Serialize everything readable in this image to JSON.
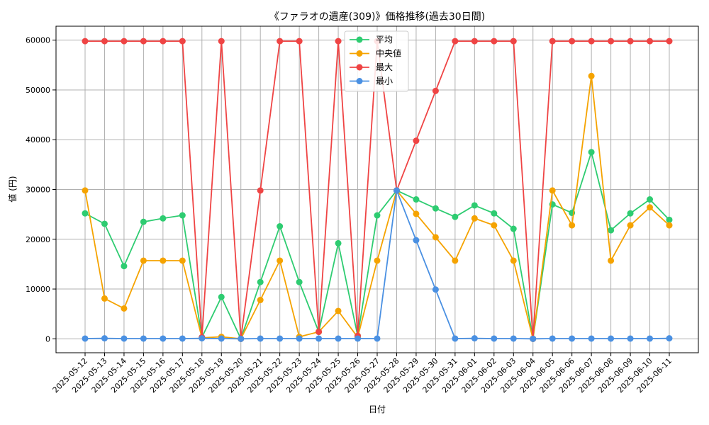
{
  "chart_data": {
    "type": "line",
    "title": "《ファラオの遺産(309)》価格推移(過去30日間)",
    "xlabel": "日付",
    "ylabel": "値 (円)",
    "ylim": [
      -2800,
      62800
    ],
    "yticks": [
      0,
      10000,
      20000,
      30000,
      40000,
      50000,
      60000
    ],
    "grid": true,
    "legend_position": "top-center",
    "categories": [
      "2025-05-12",
      "2025-05-13",
      "2025-05-14",
      "2025-05-15",
      "2025-05-16",
      "2025-05-17",
      "2025-05-18",
      "2025-05-19",
      "2025-05-20",
      "2025-05-21",
      "2025-05-22",
      "2025-05-23",
      "2025-05-24",
      "2025-05-25",
      "2025-05-26",
      "2025-05-27",
      "2025-05-28",
      "2025-05-29",
      "2025-05-30",
      "2025-05-31",
      "2025-06-01",
      "2025-06-02",
      "2025-06-03",
      "2025-06-04",
      "2025-06-05",
      "2025-06-06",
      "2025-06-07",
      "2025-06-08",
      "2025-06-09",
      "2025-06-10",
      "2025-06-11"
    ],
    "series": [
      {
        "name": "平均",
        "color": "#2ecc71",
        "values": [
          25200,
          23100,
          14600,
          23500,
          24200,
          24800,
          300,
          8400,
          0,
          11400,
          22600,
          11400,
          1400,
          19200,
          600,
          24800,
          29800,
          28000,
          26200,
          24500,
          26800,
          25200,
          22100,
          0,
          27000,
          25300,
          37500,
          21800,
          25200,
          28000,
          23900
        ]
      },
      {
        "name": "中央値",
        "color": "#f5a300",
        "values": [
          29800,
          8100,
          6100,
          15700,
          15700,
          15700,
          200,
          400,
          0,
          7800,
          15700,
          400,
          1400,
          5600,
          300,
          15700,
          29800,
          25100,
          20400,
          15700,
          24200,
          22800,
          15700,
          0,
          29800,
          22800,
          52800,
          15700,
          22800,
          26400,
          22800
        ]
      },
      {
        "name": "最大",
        "color": "#ef4444",
        "values": [
          59800,
          59800,
          59800,
          59800,
          59800,
          59800,
          300,
          59800,
          0,
          29800,
          59800,
          59800,
          1400,
          59800,
          600,
          59800,
          29800,
          39800,
          49800,
          59800,
          59800,
          59800,
          59800,
          0,
          59800,
          59800,
          59800,
          59800,
          59800,
          59800,
          59800
        ]
      },
      {
        "name": "最小",
        "color": "#4a90e2",
        "values": [
          50,
          100,
          50,
          50,
          50,
          50,
          100,
          50,
          0,
          50,
          50,
          50,
          50,
          50,
          50,
          50,
          29800,
          19800,
          9900,
          50,
          100,
          50,
          50,
          0,
          50,
          50,
          50,
          50,
          50,
          50,
          100
        ]
      }
    ]
  }
}
